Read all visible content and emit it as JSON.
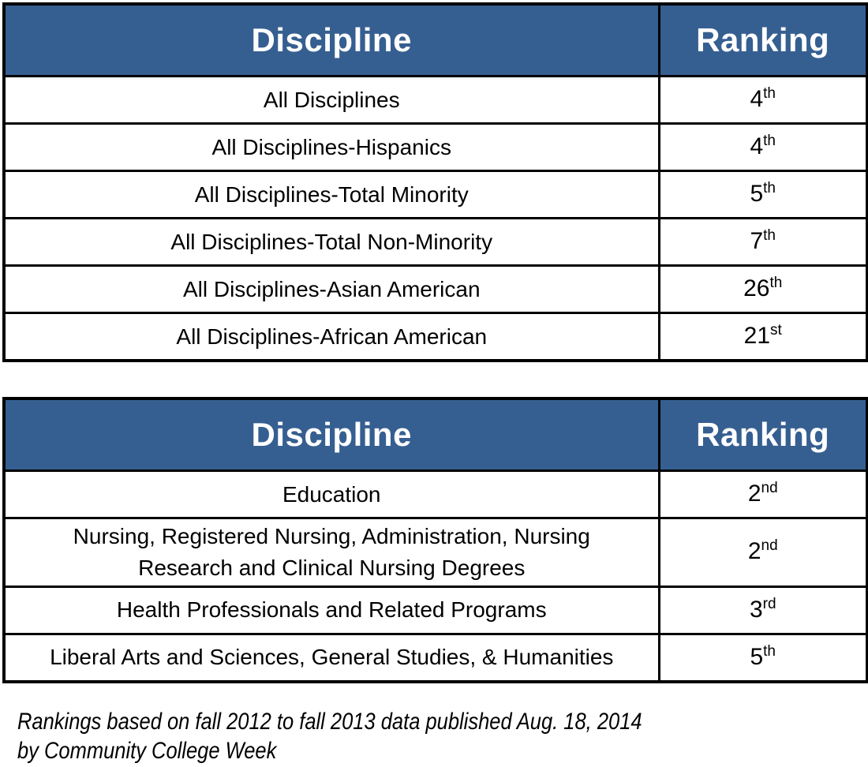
{
  "colors": {
    "header_bg": "#365F91",
    "header_text": "#FFFFFF",
    "border": "#000000",
    "body_text": "#000000",
    "row_bg": "#FFFFFF"
  },
  "tables": [
    {
      "headers": {
        "discipline": "Discipline",
        "ranking": "Ranking"
      },
      "rows": [
        {
          "discipline": "All Disciplines",
          "rank": "4",
          "ordinal": "th"
        },
        {
          "discipline": "All Disciplines-Hispanics",
          "rank": "4",
          "ordinal": "th"
        },
        {
          "discipline": "All Disciplines-Total Minority",
          "rank": "5",
          "ordinal": "th"
        },
        {
          "discipline": "All Disciplines-Total Non-Minority",
          "rank": "7",
          "ordinal": "th"
        },
        {
          "discipline": "All Disciplines-Asian American",
          "rank": "26",
          "ordinal": "th"
        },
        {
          "discipline": "All Disciplines-African American",
          "rank": "21",
          "ordinal": "st"
        }
      ]
    },
    {
      "headers": {
        "discipline": "Discipline",
        "ranking": "Ranking"
      },
      "rows": [
        {
          "discipline": "Education",
          "rank": "2",
          "ordinal": "nd"
        },
        {
          "discipline": "Nursing, Registered Nursing, Administration, Nursing Research and Clinical Nursing Degrees",
          "rank": "2",
          "ordinal": "nd"
        },
        {
          "discipline": "Health Professionals and Related Programs",
          "rank": "3",
          "ordinal": "rd"
        },
        {
          "discipline": "Liberal Arts and Sciences, General Studies, & Humanities",
          "rank": "5",
          "ordinal": "th"
        }
      ]
    }
  ],
  "footnote": {
    "line1": "Rankings based on fall 2012 to fall 2013 data published Aug. 18, 2014",
    "line2": "by Community College Week"
  }
}
